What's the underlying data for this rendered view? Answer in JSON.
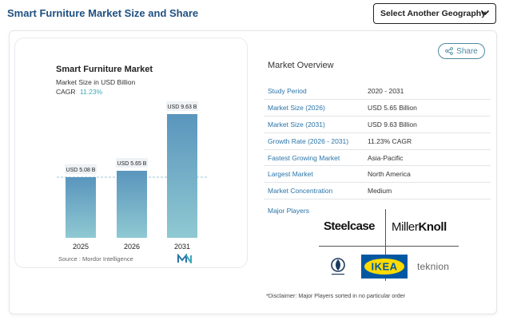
{
  "header": {
    "title": "Smart Furniture Market Size and Share",
    "geography_select_label": "Select Another Geography"
  },
  "chart": {
    "title": "Smart Furniture Market",
    "subtitle": "Market Size in USD Billion",
    "cagr_label": "CAGR",
    "cagr_value": "11.23%",
    "source": "Source : Mordor Intelligence",
    "bar_color_top": "#5a95bd",
    "bar_color_bottom": "#8fc9d2"
  },
  "chart_data": {
    "type": "bar",
    "title": "Smart Furniture Market",
    "categories": [
      "2025",
      "2026",
      "2031"
    ],
    "values": [
      5.08,
      5.65,
      9.63
    ],
    "value_labels": [
      "USD 5.08 B",
      "USD 5.65 B",
      "USD 9.63 B"
    ],
    "ylabel": "Market Size in USD Billion",
    "ylim": [
      0,
      10
    ],
    "grid": false,
    "legend": "none"
  },
  "overview": {
    "title": "Market Overview",
    "share_label": "Share",
    "rows": [
      {
        "key": "Study Period",
        "value": "2020 - 2031"
      },
      {
        "key": "Market Size (2026)",
        "value": "USD 5.65 Billion"
      },
      {
        "key": "Market Size (2031)",
        "value": "USD 9.63 Billion"
      },
      {
        "key": "Growth Rate (2026 - 2031)",
        "value": "11.23% CAGR"
      },
      {
        "key": "Fastest Growing Market",
        "value": "Asia-Pacific"
      },
      {
        "key": "Largest Market",
        "value": "North America"
      },
      {
        "key": "Market Concentration",
        "value": "Medium"
      }
    ],
    "major_players_label": "Major Players",
    "players": {
      "steelcase": "Steelcase",
      "miller": "Miller",
      "knoll": "Knoll",
      "ikea": "IKEA",
      "teknion": "teknion"
    },
    "disclaimer": "*Disclaimer: Major Players sorted in no particular order"
  }
}
